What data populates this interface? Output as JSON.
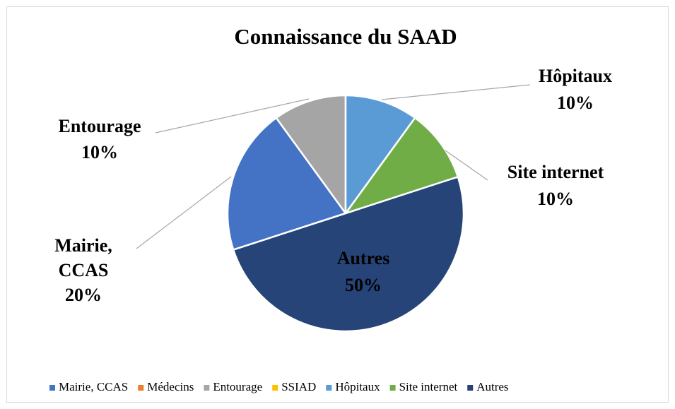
{
  "chart_data": {
    "type": "pie",
    "title": "Connaissance du SAAD",
    "categories": [
      "Mairie, CCAS",
      "Médecins",
      "Entourage",
      "SSIAD",
      "Hôpitaux",
      "Site internet",
      "Autres"
    ],
    "values": [
      20,
      0,
      10,
      0,
      10,
      10,
      50
    ],
    "value_labels": [
      "20%",
      null,
      "10%",
      null,
      "10%",
      "10%",
      "50%"
    ],
    "colors": [
      "#4472c4",
      "#ed7d31",
      "#a5a5a5",
      "#ffc000",
      "#5b9bd5",
      "#70ad47",
      "#264478"
    ],
    "legend": "bottom"
  }
}
